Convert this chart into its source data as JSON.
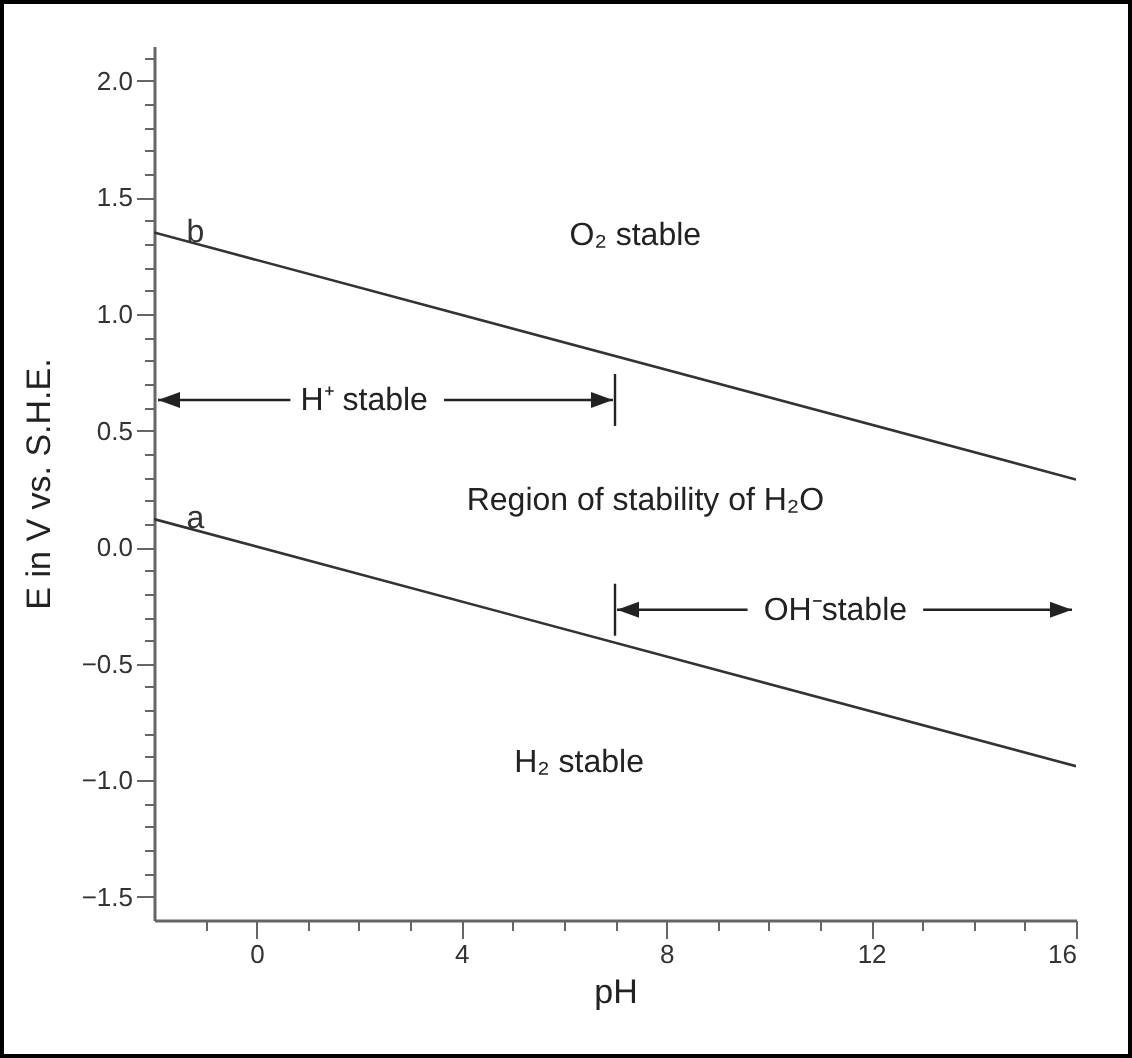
{
  "chart_data": {
    "type": "line",
    "xlabel": "pH",
    "ylabel": "E in V vs. S.H.E.",
    "x": [
      -2,
      16
    ],
    "series": [
      {
        "name": "a",
        "color": "#333333",
        "values": [
          0.12,
          -0.94
        ]
      },
      {
        "name": "b",
        "color": "#333333",
        "values": [
          1.35,
          0.29
        ]
      }
    ],
    "xlim": [
      -2,
      16
    ],
    "xticks": [
      {
        "value": -1,
        "label": null
      },
      0,
      {
        "value": 1,
        "label": null
      },
      {
        "value": 2,
        "label": null
      },
      {
        "value": 3,
        "label": null
      },
      4,
      {
        "value": 5,
        "label": null
      },
      {
        "value": 6,
        "label": null
      },
      {
        "value": 7,
        "label": null
      },
      8,
      {
        "value": 9,
        "label": null
      },
      {
        "value": 10,
        "label": null
      },
      {
        "value": 11,
        "label": null
      },
      12,
      {
        "value": 13,
        "label": null
      },
      {
        "value": 14,
        "label": null
      },
      {
        "value": 15,
        "label": null
      },
      16
    ],
    "ylim": [
      -1.6,
      2.15
    ],
    "yticks": [
      {
        "value": -1.5,
        "label": "−1.5"
      },
      {
        "value": -1.4,
        "label": null
      },
      {
        "value": -1.3,
        "label": null
      },
      {
        "value": -1.2,
        "label": null
      },
      {
        "value": -1.1,
        "label": null
      },
      {
        "value": -1,
        "label": "−1.0"
      },
      {
        "value": -0.9,
        "label": null
      },
      {
        "value": -0.8,
        "label": null
      },
      {
        "value": -0.7,
        "label": null
      },
      {
        "value": -0.6,
        "label": null
      },
      {
        "value": -0.5,
        "label": "−0.5"
      },
      {
        "value": -0.4,
        "label": null
      },
      {
        "value": -0.3,
        "label": null
      },
      {
        "value": -0.2,
        "label": null
      },
      {
        "value": -0.1,
        "label": null
      },
      {
        "value": 0,
        "label": "0.0"
      },
      {
        "value": 0.1,
        "label": null
      },
      {
        "value": 0.2,
        "label": null
      },
      {
        "value": 0.3,
        "label": null
      },
      {
        "value": 0.4,
        "label": null
      },
      {
        "value": 0.5,
        "label": "0.5"
      },
      {
        "value": 0.6,
        "label": null
      },
      {
        "value": 0.7,
        "label": null
      },
      {
        "value": 0.8,
        "label": null
      },
      {
        "value": 0.9,
        "label": null
      },
      {
        "value": 1,
        "label": "1.0"
      },
      {
        "value": 1.1,
        "label": null
      },
      {
        "value": 1.2,
        "label": null
      },
      {
        "value": 1.3,
        "label": null
      },
      {
        "value": 1.4,
        "label": null
      },
      {
        "value": 1.5,
        "label": "1.5"
      },
      {
        "value": 1.6,
        "label": null
      },
      {
        "value": 1.7,
        "label": null
      },
      {
        "value": 1.8,
        "label": null
      },
      {
        "value": 1.9,
        "label": null
      },
      {
        "value": 2,
        "label": "2.0"
      },
      {
        "value": 2.1,
        "label": null
      }
    ],
    "annotations": [
      "O₂ stable",
      "H⁺ stable",
      "Region of stability of H₂O",
      "OH⁻stable",
      "H₂ stable"
    ]
  }
}
